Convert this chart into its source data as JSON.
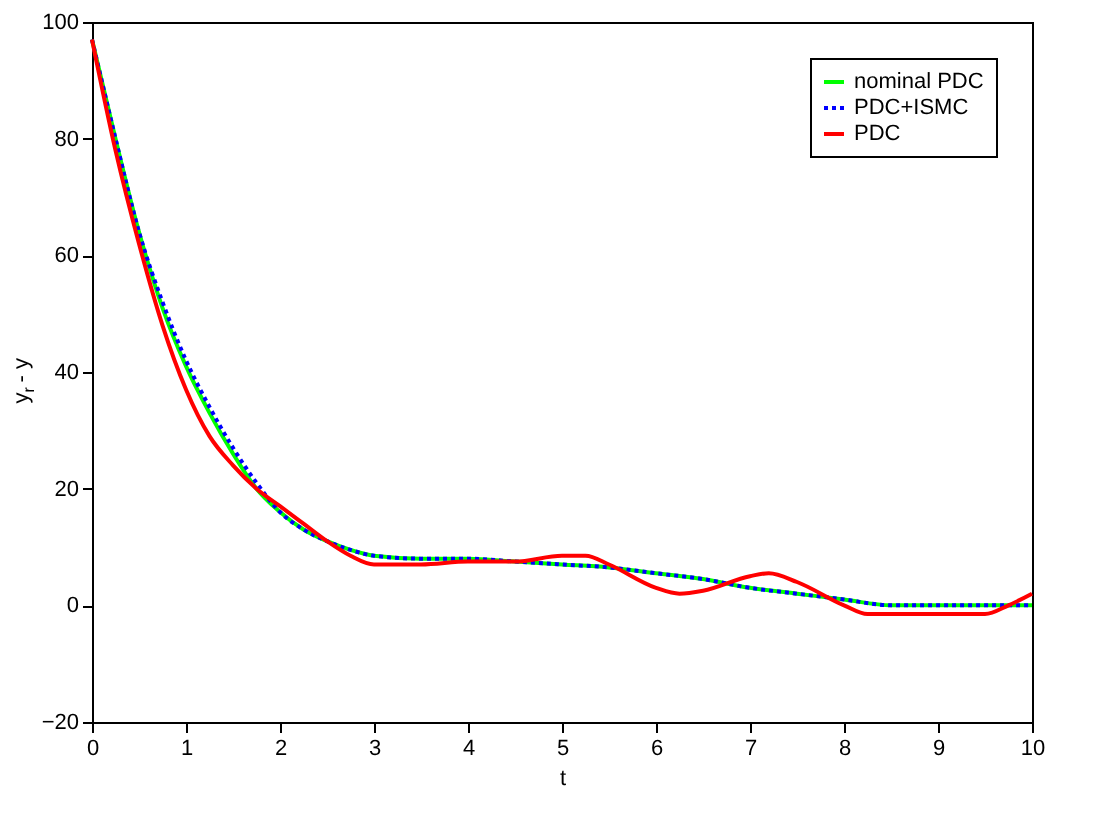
{
  "chart_data": {
    "type": "line",
    "xlabel": "t",
    "ylabel": "y$_{r}$ - y",
    "xlim": [
      0,
      10
    ],
    "ylim": [
      -20,
      100
    ],
    "xticks": [
      0,
      1,
      2,
      3,
      4,
      5,
      6,
      7,
      8,
      9,
      10
    ],
    "yticks": [
      -20,
      0,
      20,
      40,
      60,
      80,
      100
    ],
    "grid": false,
    "legend": "top right",
    "series": [
      {
        "name": "nominal PDC",
        "color": "#00ff00",
        "line_style": "solid",
        "x": [
          0,
          0.25,
          0.5,
          0.75,
          1,
          1.25,
          1.5,
          1.75,
          2,
          2.25,
          2.5,
          2.75,
          3,
          3.5,
          4,
          4.5,
          5,
          5.5,
          6,
          6.5,
          7,
          7.5,
          8,
          8.5,
          9,
          9.5,
          10
        ],
        "values": [
          97,
          80,
          64,
          51,
          41,
          33,
          26,
          20,
          16,
          13,
          11,
          9.5,
          8.5,
          8,
          8,
          7.5,
          7,
          6.5,
          5.5,
          4.5,
          3,
          2,
          1,
          0,
          0,
          0,
          0
        ]
      },
      {
        "name": "PDC+ISMC",
        "color": "#0000ff",
        "line_style": "dotted",
        "x": [
          0,
          0.25,
          0.5,
          0.75,
          1,
          1.25,
          1.5,
          1.75,
          2,
          2.25,
          2.5,
          2.75,
          3,
          3.5,
          4,
          4.5,
          5,
          5.5,
          6,
          6.5,
          7,
          7.5,
          8,
          8.5,
          9,
          9.5,
          10
        ],
        "values": [
          97,
          80,
          64,
          52,
          42,
          34,
          27,
          21,
          16,
          13,
          11,
          9.5,
          8.5,
          8,
          8,
          7.5,
          7,
          6.5,
          5.5,
          4.5,
          3,
          2,
          1,
          0,
          0,
          0,
          0
        ]
      },
      {
        "name": "PDC",
        "color": "#ff0000",
        "line_style": "solid",
        "x": [
          0,
          0.25,
          0.5,
          0.75,
          1,
          1.25,
          1.5,
          1.75,
          2,
          2.25,
          2.5,
          2.75,
          3,
          3.5,
          4,
          4.5,
          5,
          5.25,
          5.5,
          6,
          6.25,
          6.5,
          7,
          7.2,
          7.5,
          8,
          8.25,
          8.5,
          9,
          9.5,
          9.75,
          10
        ],
        "values": [
          97,
          78,
          62,
          48,
          37,
          29,
          24,
          20,
          17,
          14,
          11,
          8.5,
          7,
          7,
          7.5,
          7.5,
          8.5,
          8.5,
          7,
          3,
          2,
          2.5,
          5,
          5.5,
          4,
          0,
          -1.5,
          -1.5,
          -1.5,
          -1.5,
          0,
          2
        ]
      }
    ]
  }
}
